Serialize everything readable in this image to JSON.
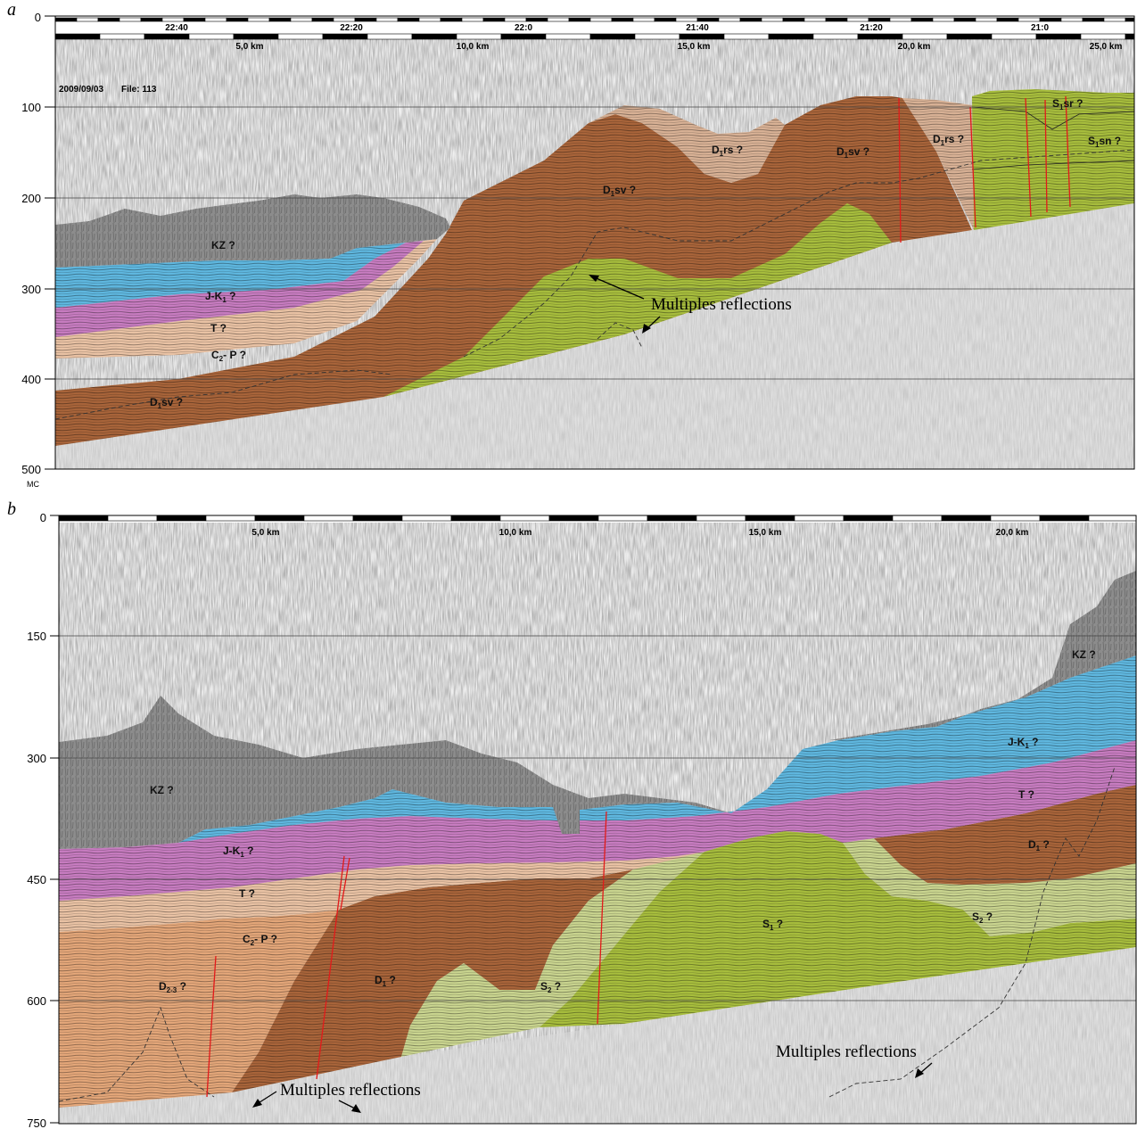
{
  "panel_a": {
    "letter": "a",
    "time_ticks": [
      "22:40",
      "22:20",
      "22:0",
      "21:40",
      "21:20",
      "21:0"
    ],
    "km_ticks": [
      "5,0 km",
      "10,0 km",
      "15,0 km",
      "20,0 km",
      "25,0 km"
    ],
    "date": "2009/09/03",
    "file": "File:  113",
    "y_ticks": [
      "0",
      "100",
      "200",
      "300",
      "400",
      "500"
    ],
    "y_unit": "MC",
    "labels": {
      "kz": "KZ ?",
      "jk": "J-K",
      "jk_sub": "1",
      "jk_q": " ?",
      "t": "T ?",
      "cp": "C",
      "cp_sub": "2",
      "cp_rest": "- P ?",
      "d1sv_low": "D",
      "d1sv_low_sub": "1",
      "d1sv_low_rest": "sv ?",
      "d1sv_mid": "D",
      "d1sv_mid_sub": "1",
      "d1sv_mid_rest": "sv ?",
      "d1rs_a": "D",
      "d1rs_a_sub": "1",
      "d1rs_a_rest": "rs ?",
      "d1sv_r": "D",
      "d1sv_r_sub": "1",
      "d1sv_r_rest": "sv ?",
      "d1rs_b": "D",
      "d1rs_b_sub": "1",
      "d1rs_b_rest": "rs ?",
      "s1sr": "S",
      "s1sr_sub": "1",
      "s1sr_rest": "sr ?",
      "s1sn": "S",
      "s1sn_sub": "1",
      "s1sn_rest": "sn ?"
    },
    "multiples": "Multiples reflections"
  },
  "panel_b": {
    "letter": "b",
    "km_ticks": [
      "5,0 km",
      "10,0 km",
      "15,0 km",
      "20,0 km"
    ],
    "y_ticks": [
      "0",
      "150",
      "300",
      "450",
      "600",
      "750"
    ],
    "labels": {
      "kz_left": "KZ ?",
      "kz_right": "KZ ?",
      "jk_left": "J-K",
      "jk_left_sub": "1",
      "jk_left_q": " ?",
      "jk_right": "J-K",
      "jk_right_sub": "1",
      "jk_right_q": " ?",
      "t_left": "T ?",
      "t_right": "T ?",
      "cp": "C",
      "cp_sub": "2",
      "cp_rest": "- P ?",
      "d23": "D",
      "d23_sub": "2-3",
      "d23_q": " ?",
      "d1_mid": "D",
      "d1_mid_sub": "1",
      "d1_mid_q": " ?",
      "d1_right": "D",
      "d1_right_sub": "1",
      "d1_right_q": " ?",
      "s2_mid": "S",
      "s2_mid_sub": "2",
      "s2_mid_q": " ?",
      "s1": "S",
      "s1_sub": "1",
      "s1_q": " ?",
      "s2_right": "S",
      "s2_right_sub": "2",
      "s2_right_q": " ?"
    },
    "multiples_left": "Multiples reflections",
    "multiples_right": "Multiples reflections"
  },
  "colors": {
    "kz": "#8c8c8c",
    "jk": "#5fb7df",
    "t": "#c77cc0",
    "cp": "#e9c2a4",
    "d_brown": "#a8643a",
    "d23": "#e3a679",
    "s_green": "#a7bd3d",
    "s2_light": "#c9d48f",
    "d1rs": "#d8b195",
    "fault": "#e21a1a",
    "noise_bg": "#efefef"
  }
}
